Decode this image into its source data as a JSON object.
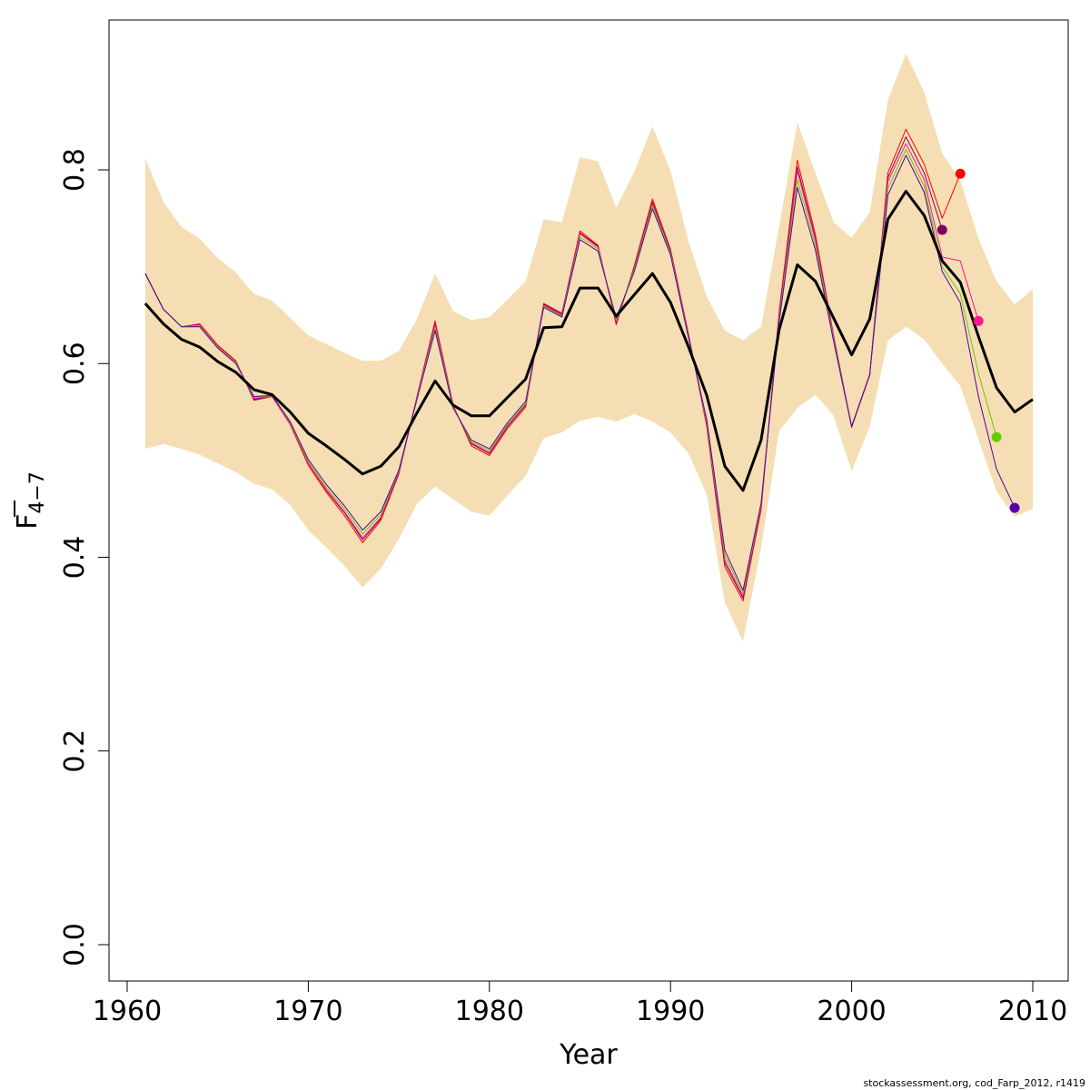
{
  "chart_data": {
    "type": "line",
    "title": "",
    "xlabel": "Year",
    "ylabel_main": "F",
    "ylabel_sub": "4−7",
    "xlim": [
      1960,
      2010
    ],
    "ylim": [
      0.0,
      0.9
    ],
    "x_ticks": [
      1960,
      1970,
      1980,
      1990,
      2000,
      2010
    ],
    "y_ticks": [
      0.0,
      0.2,
      0.4,
      0.6,
      0.8
    ],
    "y_tick_labels": [
      "0.0",
      "0.2",
      "0.4",
      "0.6",
      "0.8"
    ],
    "band_color": "#F5DEB3",
    "band": {
      "x": [
        1961,
        1962,
        1963,
        1964,
        1965,
        1966,
        1967,
        1968,
        1969,
        1970,
        1971,
        1972,
        1973,
        1974,
        1975,
        1976,
        1977,
        1978,
        1979,
        1980,
        1981,
        1982,
        1983,
        1984,
        1985,
        1986,
        1987,
        1988,
        1989,
        1990,
        1991,
        1992,
        1993,
        1994,
        1995,
        1996,
        1997,
        1998,
        1999,
        2000,
        2001,
        2002,
        2003,
        2004,
        2005,
        2006,
        2007,
        2008,
        2009,
        2010
      ],
      "upper": [
        0.812,
        0.767,
        0.741,
        0.729,
        0.709,
        0.694,
        0.672,
        0.665,
        0.647,
        0.629,
        0.62,
        0.611,
        0.603,
        0.603,
        0.613,
        0.646,
        0.693,
        0.654,
        0.645,
        0.648,
        0.666,
        0.685,
        0.749,
        0.746,
        0.813,
        0.809,
        0.761,
        0.798,
        0.845,
        0.799,
        0.726,
        0.669,
        0.634,
        0.624,
        0.638,
        0.742,
        0.849,
        0.797,
        0.746,
        0.73,
        0.756,
        0.872,
        0.92,
        0.88,
        0.817,
        0.789,
        0.729,
        0.685,
        0.661,
        0.677
      ],
      "lower": [
        0.512,
        0.517,
        0.512,
        0.506,
        0.497,
        0.488,
        0.476,
        0.47,
        0.454,
        0.428,
        0.41,
        0.391,
        0.369,
        0.388,
        0.419,
        0.455,
        0.473,
        0.46,
        0.447,
        0.443,
        0.464,
        0.484,
        0.523,
        0.529,
        0.541,
        0.545,
        0.54,
        0.548,
        0.54,
        0.529,
        0.507,
        0.465,
        0.353,
        0.313,
        0.41,
        0.53,
        0.554,
        0.568,
        0.546,
        0.489,
        0.535,
        0.624,
        0.638,
        0.625,
        0.6,
        0.577,
        0.522,
        0.468,
        0.442,
        0.45
      ]
    },
    "series": [
      {
        "color": "#FF0000",
        "x": [
          1961,
          1962,
          1963,
          1964,
          1965,
          1966,
          1967,
          1968,
          1969,
          1970,
          1971,
          1972,
          1973,
          1974,
          1975,
          1976,
          1977,
          1978,
          1979,
          1980,
          1981,
          1982,
          1983,
          1984,
          1985,
          1986,
          1987,
          1988,
          1989,
          1990,
          1991,
          1992,
          1993,
          1994,
          1995,
          1996,
          1997,
          1998,
          1999,
          2000,
          2001,
          2002,
          2003,
          2004,
          2005,
          2006
        ],
        "values": [
          0.693,
          0.656,
          0.638,
          0.641,
          0.619,
          0.603,
          0.562,
          0.566,
          0.537,
          0.495,
          0.467,
          0.443,
          0.415,
          0.438,
          0.486,
          0.566,
          0.644,
          0.557,
          0.515,
          0.505,
          0.533,
          0.555,
          0.662,
          0.652,
          0.737,
          0.722,
          0.64,
          0.701,
          0.77,
          0.718,
          0.63,
          0.535,
          0.39,
          0.355,
          0.449,
          0.654,
          0.81,
          0.733,
          0.629,
          0.534,
          0.588,
          0.797,
          0.842,
          0.806,
          0.75,
          0.796
        ],
        "end_marker": true
      },
      {
        "color": "#800060",
        "x": [
          1961,
          1962,
          1963,
          1964,
          1965,
          1966,
          1967,
          1968,
          1969,
          1970,
          1971,
          1972,
          1973,
          1974,
          1975,
          1976,
          1977,
          1978,
          1979,
          1980,
          1981,
          1982,
          1983,
          1984,
          1985,
          1986,
          1987,
          1988,
          1989,
          1990,
          1991,
          1992,
          1993,
          1994,
          1995,
          1996,
          1997,
          1998,
          1999,
          2000,
          2001,
          2002,
          2003,
          2004,
          2005
        ],
        "values": [
          0.693,
          0.656,
          0.638,
          0.64,
          0.618,
          0.602,
          0.563,
          0.566,
          0.538,
          0.497,
          0.469,
          0.446,
          0.418,
          0.44,
          0.487,
          0.565,
          0.641,
          0.556,
          0.517,
          0.507,
          0.535,
          0.557,
          0.661,
          0.651,
          0.735,
          0.721,
          0.642,
          0.699,
          0.767,
          0.716,
          0.629,
          0.537,
          0.394,
          0.358,
          0.451,
          0.651,
          0.803,
          0.729,
          0.628,
          0.535,
          0.588,
          0.792,
          0.834,
          0.797,
          0.738
        ],
        "end_marker": true
      },
      {
        "color": "#FF1493",
        "x": [
          1961,
          1962,
          1963,
          1964,
          1965,
          1966,
          1967,
          1968,
          1969,
          1970,
          1971,
          1972,
          1973,
          1974,
          1975,
          1976,
          1977,
          1978,
          1979,
          1980,
          1981,
          1982,
          1983,
          1984,
          1985,
          1986,
          1987,
          1988,
          1989,
          1990,
          1991,
          1992,
          1993,
          1994,
          1995,
          1996,
          1997,
          1998,
          1999,
          2000,
          2001,
          2002,
          2003,
          2004,
          2005,
          2006,
          2007
        ],
        "values": [
          0.693,
          0.656,
          0.638,
          0.64,
          0.618,
          0.602,
          0.564,
          0.566,
          0.538,
          0.497,
          0.47,
          0.447,
          0.42,
          0.441,
          0.488,
          0.565,
          0.64,
          0.556,
          0.518,
          0.508,
          0.536,
          0.558,
          0.66,
          0.65,
          0.734,
          0.72,
          0.643,
          0.698,
          0.765,
          0.715,
          0.628,
          0.538,
          0.397,
          0.36,
          0.452,
          0.649,
          0.799,
          0.727,
          0.627,
          0.535,
          0.588,
          0.788,
          0.827,
          0.79,
          0.71,
          0.706,
          0.644
        ],
        "end_marker": true
      },
      {
        "color": "#66CC00",
        "x": [
          1961,
          1962,
          1963,
          1964,
          1965,
          1966,
          1967,
          1968,
          1969,
          1970,
          1971,
          1972,
          1973,
          1974,
          1975,
          1976,
          1977,
          1978,
          1979,
          1980,
          1981,
          1982,
          1983,
          1984,
          1985,
          1986,
          1987,
          1988,
          1989,
          1990,
          1991,
          1992,
          1993,
          1994,
          1995,
          1996,
          1997,
          1998,
          1999,
          2000,
          2001,
          2002,
          2003,
          2004,
          2005,
          2006,
          2007,
          2008
        ],
        "values": [
          0.693,
          0.656,
          0.638,
          0.639,
          0.617,
          0.601,
          0.565,
          0.567,
          0.539,
          0.499,
          0.472,
          0.45,
          0.424,
          0.444,
          0.489,
          0.564,
          0.637,
          0.555,
          0.519,
          0.51,
          0.537,
          0.559,
          0.659,
          0.649,
          0.731,
          0.718,
          0.645,
          0.697,
          0.763,
          0.714,
          0.627,
          0.54,
          0.402,
          0.363,
          0.454,
          0.646,
          0.79,
          0.722,
          0.625,
          0.535,
          0.589,
          0.781,
          0.821,
          0.783,
          0.7,
          0.672,
          0.59,
          0.524
        ],
        "end_marker": true
      },
      {
        "color": "#5500AA",
        "x": [
          1961,
          1962,
          1963,
          1964,
          1965,
          1966,
          1967,
          1968,
          1969,
          1970,
          1971,
          1972,
          1973,
          1974,
          1975,
          1976,
          1977,
          1978,
          1979,
          1980,
          1981,
          1982,
          1983,
          1984,
          1985,
          1986,
          1987,
          1988,
          1989,
          1990,
          1991,
          1992,
          1993,
          1994,
          1995,
          1996,
          1997,
          1998,
          1999,
          2000,
          2001,
          2002,
          2003,
          2004,
          2005,
          2006,
          2007,
          2008,
          2009
        ],
        "values": [
          0.693,
          0.656,
          0.638,
          0.638,
          0.616,
          0.6,
          0.566,
          0.567,
          0.54,
          0.501,
          0.475,
          0.453,
          0.428,
          0.447,
          0.49,
          0.563,
          0.634,
          0.554,
          0.521,
          0.512,
          0.539,
          0.561,
          0.658,
          0.648,
          0.728,
          0.716,
          0.647,
          0.695,
          0.76,
          0.712,
          0.626,
          0.542,
          0.407,
          0.366,
          0.456,
          0.643,
          0.782,
          0.717,
          0.623,
          0.535,
          0.589,
          0.774,
          0.815,
          0.777,
          0.695,
          0.663,
          0.566,
          0.491,
          0.451
        ],
        "end_marker": true
      },
      {
        "color": "#000000",
        "bold": true,
        "x": [
          1961,
          1962,
          1963,
          1964,
          1965,
          1966,
          1967,
          1968,
          1969,
          1970,
          1971,
          1972,
          1973,
          1974,
          1975,
          1976,
          1977,
          1978,
          1979,
          1980,
          1981,
          1982,
          1983,
          1984,
          1985,
          1986,
          1987,
          1988,
          1989,
          1990,
          1991,
          1992,
          1993,
          1994,
          1995,
          1996,
          1997,
          1998,
          1999,
          2000,
          2001,
          2002,
          2003,
          2004,
          2005,
          2006,
          2007,
          2008,
          2009,
          2010
        ],
        "values": [
          0.662,
          0.641,
          0.625,
          0.617,
          0.602,
          0.591,
          0.573,
          0.568,
          0.55,
          0.528,
          0.515,
          0.501,
          0.486,
          0.494,
          0.514,
          0.549,
          0.582,
          0.557,
          0.546,
          0.546,
          0.565,
          0.584,
          0.637,
          0.638,
          0.678,
          0.678,
          0.649,
          0.671,
          0.693,
          0.663,
          0.617,
          0.567,
          0.494,
          0.469,
          0.521,
          0.635,
          0.702,
          0.685,
          0.647,
          0.609,
          0.646,
          0.749,
          0.778,
          0.753,
          0.706,
          0.684,
          0.628,
          0.575,
          0.55,
          0.563
        ],
        "end_marker": false
      }
    ]
  },
  "credit": "stockassessment.org, cod_Farp_2012, r1419"
}
